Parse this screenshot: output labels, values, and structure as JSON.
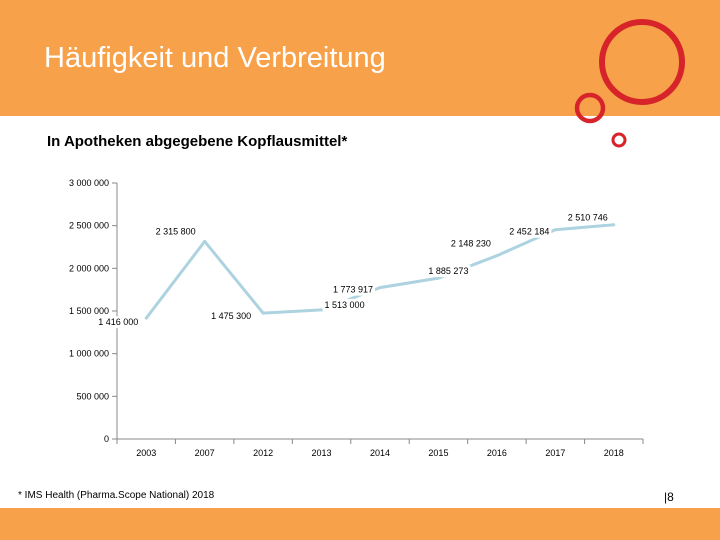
{
  "slide": {
    "title": "Häufigkeit und Verbreitung",
    "subtitle": "In Apotheken abgegebene Kopflausmittel*",
    "source_note": "* IMS Health (Pharma.Scope National) 2018",
    "page_number": "|8"
  },
  "colors": {
    "accent_orange": "#f7a24a",
    "ring_red": "#d7242a",
    "line_color": "#aed3e0"
  },
  "chart_data": {
    "type": "line",
    "title": "In Apotheken abgegebene Kopflausmittel*",
    "categories": [
      "2003",
      "2007",
      "2012",
      "2013",
      "2014",
      "2015",
      "2016",
      "2017",
      "2018"
    ],
    "series": [
      {
        "name": "Kopflausmittel",
        "points": [
          {
            "x": 0.5,
            "y": 1416000,
            "label": "1 416 000"
          },
          {
            "x": 1.5,
            "y": 2315800,
            "label": "2 315 800"
          },
          {
            "x": 2.5,
            "y": 1475300,
            "label": "1 475 300"
          },
          {
            "x": 3.5,
            "y": 1513000,
            "label": "1 513 000"
          },
          {
            "x": 4.5,
            "y": 1773917,
            "label": "1 773 917"
          },
          {
            "x": 5.5,
            "y": 1885273,
            "label": "1 885 273"
          },
          {
            "x": 6.5,
            "y": 2148230,
            "label": "2 148 230"
          },
          {
            "x": 7.5,
            "y": 2452184,
            "label": "2 452 184"
          },
          {
            "x": 8.5,
            "y": 2510746,
            "label": "2 510 746"
          }
        ]
      }
    ],
    "y_ticks": [
      0,
      500000,
      1000000,
      1500000,
      2000000,
      2500000,
      3000000
    ],
    "y_tick_labels": [
      "0",
      "500 000",
      "1 000 000",
      "1 500 000",
      "2 000 000",
      "2 500 000",
      "3 000 000"
    ],
    "ylim": [
      0,
      3000000
    ],
    "xlabel": "",
    "ylabel": "",
    "grid": false
  }
}
